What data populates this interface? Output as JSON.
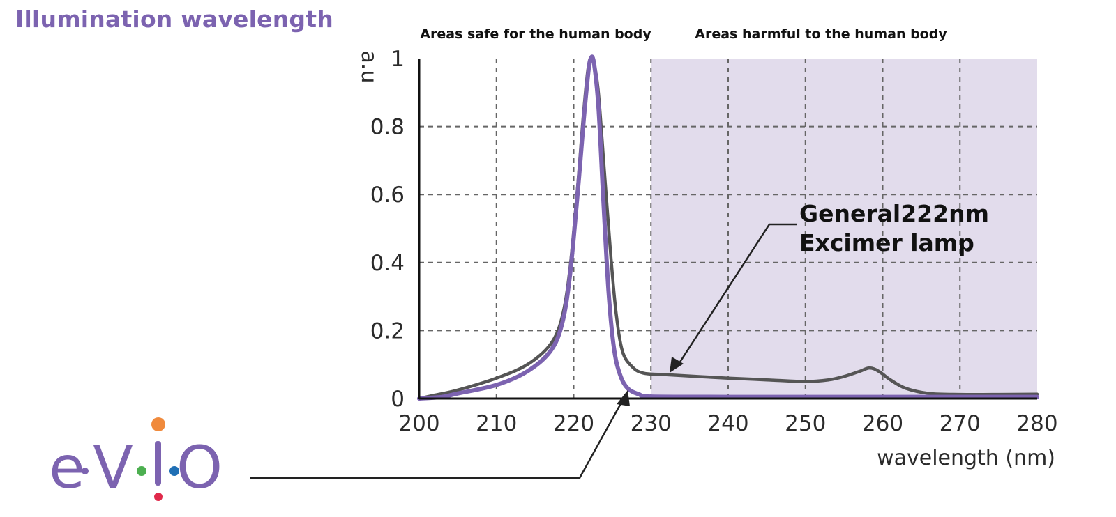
{
  "header": {
    "title": "Illumination wavelength"
  },
  "logo": {
    "text": "e·V·I·O",
    "dot_colors": [
      "#f08a3c",
      "#4caf50",
      "#1f6fb5",
      "#e0294a"
    ]
  },
  "colors": {
    "accent": "#7c63b0",
    "harmful_region": "#e2dcec",
    "general_lamp_line": "#555555",
    "evio_line": "#7c63b0",
    "grid": "#666666",
    "axis": "#111111"
  },
  "chart_data": {
    "type": "line",
    "regions": [
      {
        "label": "Areas safe for the human body",
        "x_range": [
          200,
          230
        ]
      },
      {
        "label": "Areas harmful to the human body",
        "x_range": [
          230,
          280
        ]
      }
    ],
    "xlabel": "wavelength (nm)",
    "ylabel": "a.u",
    "xlim": [
      200,
      280
    ],
    "ylim": [
      0,
      1
    ],
    "x_ticks": [
      "200",
      "210",
      "220",
      "230",
      "240",
      "250",
      "260",
      "270",
      "280"
    ],
    "y_ticks": [
      "0",
      "0.2",
      "0.4",
      "0.6",
      "0.8",
      "1"
    ],
    "grid": true,
    "series": [
      {
        "name": "General222nm Excimer lamp",
        "x": [
          200,
          202,
          205,
          210,
          214,
          217,
          218.5,
          219.5,
          220.5,
          221.2,
          221.8,
          222.2,
          222.6,
          223.2,
          224,
          224.8,
          225.5,
          226.3,
          227.5,
          229,
          232,
          240,
          245,
          250,
          253,
          255,
          257,
          258.3,
          259.5,
          261,
          263,
          266,
          270,
          275,
          280
        ],
        "y": [
          0.0,
          0.01,
          0.025,
          0.06,
          0.1,
          0.16,
          0.24,
          0.38,
          0.62,
          0.82,
          0.96,
          1.0,
          0.99,
          0.9,
          0.66,
          0.42,
          0.25,
          0.14,
          0.095,
          0.075,
          0.07,
          0.06,
          0.055,
          0.05,
          0.055,
          0.065,
          0.08,
          0.09,
          0.08,
          0.055,
          0.03,
          0.015,
          0.012,
          0.012,
          0.013
        ]
      },
      {
        "name": "",
        "x": [
          200,
          203,
          205,
          210,
          214,
          217,
          218.5,
          219.5,
          220.5,
          221.3,
          221.9,
          222.2,
          222.6,
          223.2,
          223.8,
          224.5,
          225.2,
          226,
          227,
          228.5,
          230,
          240,
          250,
          260,
          270,
          280
        ],
        "y": [
          0.0,
          0.005,
          0.015,
          0.04,
          0.08,
          0.14,
          0.22,
          0.36,
          0.6,
          0.82,
          0.96,
          1.0,
          0.99,
          0.86,
          0.6,
          0.32,
          0.15,
          0.07,
          0.03,
          0.012,
          0.006,
          0.005,
          0.005,
          0.005,
          0.005,
          0.005
        ]
      }
    ],
    "annotations": [
      {
        "text": "General222nm",
        "points_to_series": 0
      },
      {
        "text": "Excimer lamp",
        "points_to_series": 0
      }
    ]
  }
}
